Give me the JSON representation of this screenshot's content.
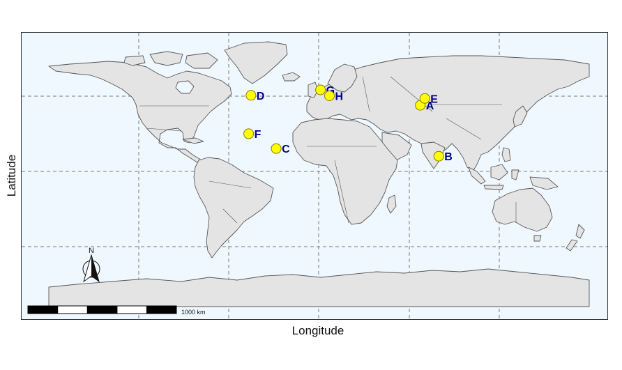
{
  "axes": {
    "xlabel": "Longitude",
    "ylabel": "Latitude"
  },
  "scalebar": {
    "label": "1000 km",
    "segments": 5
  },
  "north_arrow": {
    "label": "N"
  },
  "colors": {
    "ocean": "#f0f8ff",
    "land": "#e4e4e4",
    "border": "#555555",
    "grid": "#7a7a7a",
    "point_fill": "#ffff00",
    "point_stroke": "#8a7a00",
    "label_color": "#00008b"
  },
  "points": [
    {
      "label": "A",
      "lon": 112.5,
      "lat": 32.0
    },
    {
      "label": "B",
      "lon": 133.0,
      "lat": -24.5
    },
    {
      "label": "C",
      "lon": -47.0,
      "lat": -16.0
    },
    {
      "label": "D",
      "lon": -75.0,
      "lat": 43.0
    },
    {
      "label": "E",
      "lon": 117.5,
      "lat": 39.5
    },
    {
      "label": "F",
      "lon": -77.5,
      "lat": 0.5
    },
    {
      "label": "G",
      "lon": 2.0,
      "lat": 49.0
    },
    {
      "label": "H",
      "lon": 12.0,
      "lat": 42.5
    }
  ]
}
